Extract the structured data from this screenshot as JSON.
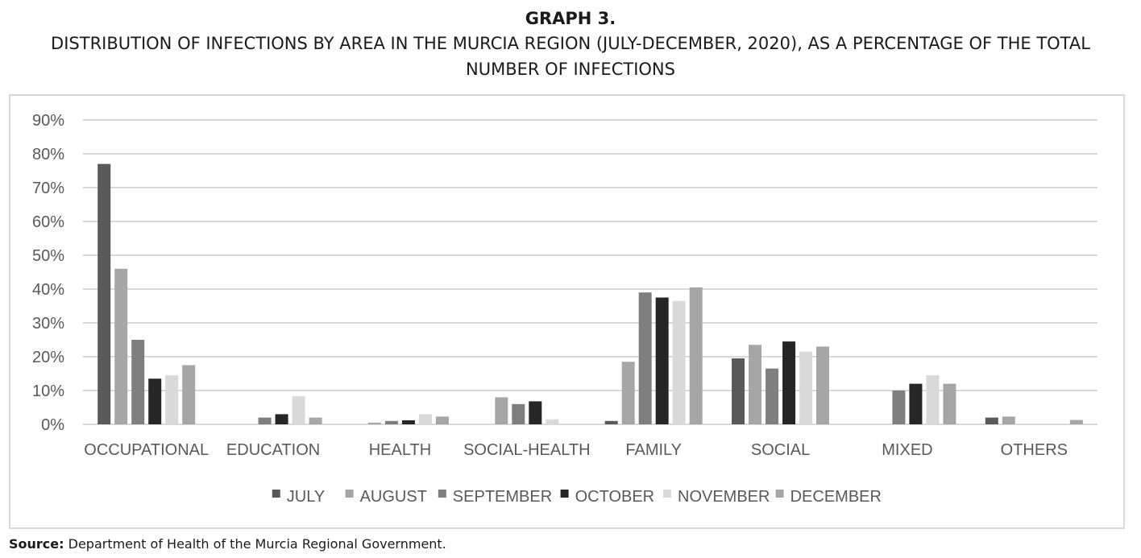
{
  "header": {
    "graph_label": "GRAPH 3.",
    "title": "DISTRIBUTION OF INFECTIONS BY AREA IN THE MURCIA REGION (JULY-DECEMBER, 2020), AS A PERCENTAGE OF THE TOTAL NUMBER OF INFECTIONS"
  },
  "source": {
    "label": "Source:",
    "text": " Department of Health of the Murcia Regional Government."
  },
  "chart_data": {
    "type": "bar",
    "categories": [
      "OCCUPATIONAL",
      "EDUCATION",
      "HEALTH",
      "SOCIAL-HEALTH",
      "FAMILY",
      "SOCIAL",
      "MIXED",
      "OTHERS"
    ],
    "y_ticks": [
      "0%",
      "10%",
      "20%",
      "30%",
      "40%",
      "50%",
      "60%",
      "70%",
      "80%",
      "90%"
    ],
    "ylim": [
      0,
      90
    ],
    "grid": true,
    "legend_position": "bottom",
    "series": [
      {
        "name": "JULY",
        "color": "#595959",
        "values": [
          77,
          0,
          0,
          0,
          1,
          19.5,
          0,
          2
        ]
      },
      {
        "name": "AUGUST",
        "color": "#a6a6a6",
        "values": [
          46,
          0,
          0.5,
          8,
          18.5,
          23.5,
          0,
          2.3
        ]
      },
      {
        "name": "SEPTEMBER",
        "color": "#7f7f7f",
        "values": [
          25,
          2,
          1,
          6,
          39,
          16.5,
          10,
          0
        ]
      },
      {
        "name": "OCTOBER",
        "color": "#262626",
        "values": [
          13.5,
          3,
          1.2,
          6.8,
          37.5,
          24.5,
          12,
          0
        ]
      },
      {
        "name": "NOVEMBER",
        "color": "#d9d9d9",
        "values": [
          14.5,
          8.3,
          3,
          1.5,
          36.5,
          21.5,
          14.5,
          0
        ]
      },
      {
        "name": "DECEMBER",
        "color": "#a6a6a6",
        "values": [
          17.5,
          2,
          2.3,
          0,
          40.5,
          23,
          12,
          1.3
        ]
      }
    ]
  }
}
